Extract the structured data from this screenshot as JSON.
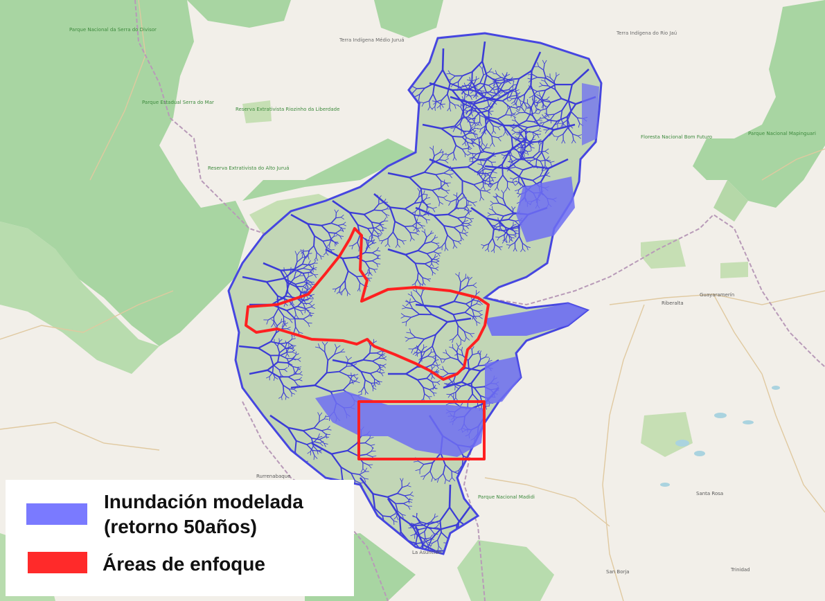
{
  "legend": {
    "flood_label_line1": "Inundación modelada",
    "flood_label_line2": "(retorno 50años)",
    "focus_label": "Áreas de enfoque",
    "flood_color": "#7a7aff",
    "focus_color": "#ff2a2a"
  },
  "colors": {
    "base": "#f2efe9",
    "forest": "#a8d5a2",
    "reserve": "#c6dfb4",
    "river": "#3b3bd6",
    "flood_fill": "#6e6ef2",
    "focus_outline": "#ff2020",
    "border": "#b89ab8"
  },
  "map_labels": [
    {
      "id": "pn-serra-divisor",
      "text": "Parque Nacional da Serra do Divisor",
      "green": true
    },
    {
      "id": "pn-serra-mar",
      "text": "Parque Estadual Serra do Mar",
      "green": true
    },
    {
      "id": "resex-alto-jurua",
      "text": "Reserva Extrativista do Alto Juruá",
      "green": true
    },
    {
      "id": "resex-liberdade",
      "text": "Reserva Extrativista Riozinho da Liberdade",
      "green": true
    },
    {
      "id": "ti-medio-jurua",
      "text": "Terra Indígena Médio Juruá",
      "green": false
    },
    {
      "id": "ti-rio-jau",
      "text": "Terra Indígena do Rio Jaú",
      "green": false
    },
    {
      "id": "fn-bom-futuro",
      "text": "Floresta Nacional Bom Futuro",
      "green": true
    },
    {
      "id": "pn-mapinguari",
      "text": "Parque Nacional Mapinguari",
      "green": true
    },
    {
      "id": "guayaramerin",
      "text": "Guayaramerín",
      "green": false
    },
    {
      "id": "riberalta",
      "text": "Riberalta",
      "green": false
    },
    {
      "id": "pn-madidi",
      "text": "Parque Nacional Madidi",
      "green": true
    },
    {
      "id": "la-asuncion",
      "text": "La Asunción",
      "green": false
    },
    {
      "id": "san-borja",
      "text": "San Borja",
      "green": false
    },
    {
      "id": "trinidad",
      "text": "Trinidad",
      "green": false
    },
    {
      "id": "santa-rosa",
      "text": "Santa Rosa",
      "green": false
    },
    {
      "id": "rurrenabaque",
      "text": "Rurrenabaque",
      "green": false
    }
  ]
}
